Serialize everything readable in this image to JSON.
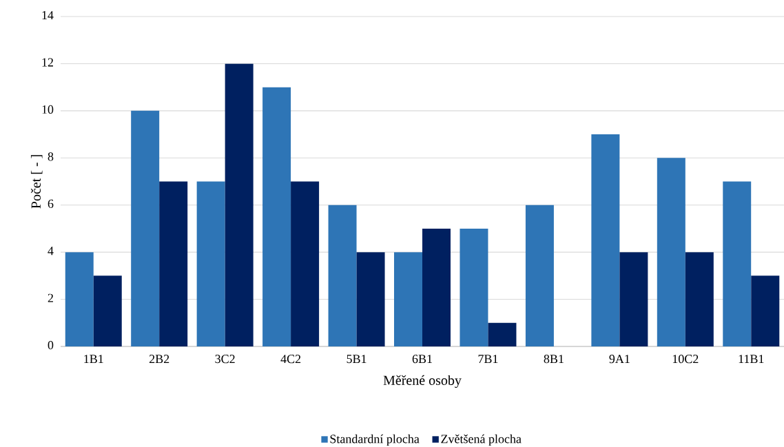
{
  "chart_data": {
    "type": "bar",
    "xlabel": "Měřené osoby",
    "ylabel": "Počet [ - ]",
    "categories": [
      "1B1",
      "2B2",
      "3C2",
      "4C2",
      "5B1",
      "6B1",
      "7B1",
      "8B1",
      "9A1",
      "10C2",
      "11B1"
    ],
    "series": [
      {
        "name": "Standardní plocha",
        "color": "#2e75b6",
        "values": [
          4,
          10,
          7,
          11,
          6,
          4,
          5,
          6,
          9,
          8,
          7
        ]
      },
      {
        "name": "Zvětšená plocha",
        "color": "#002060",
        "values": [
          3,
          7,
          12,
          7,
          4,
          5,
          1,
          0,
          4,
          4,
          3
        ]
      }
    ],
    "ylim": [
      0,
      14
    ],
    "yticks": [
      0,
      2,
      4,
      6,
      8,
      10,
      12,
      14
    ],
    "grid": "y",
    "legend": "bottom"
  }
}
